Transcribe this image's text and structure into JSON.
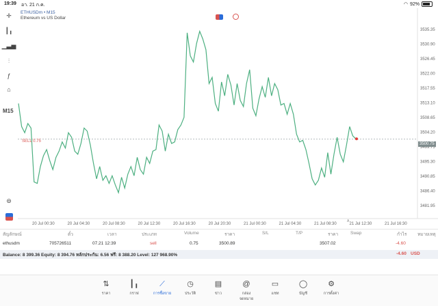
{
  "status_bar": {
    "time": "19:39",
    "date": "อา. 21 ก.ค.",
    "battery": "92%"
  },
  "chart": {
    "symbol_title": "ETHUSDm • M15",
    "subtitle": "Ethereum vs US Dollar",
    "timeframe": "M15",
    "sell_label": "SELL 0.75",
    "current_price": "3500.75",
    "line_color": "#4caf80",
    "sell_line_color": "#9aa3a8",
    "marker_color": "#e53935"
  },
  "chart_data": {
    "type": "line",
    "y_ticks": [
      "3535.35",
      "3530.90",
      "3526.45",
      "3522.00",
      "3517.55",
      "3513.10",
      "3508.65",
      "3504.20",
      "3499.75",
      "3495.30",
      "3490.85",
      "3486.40",
      "3481.95"
    ],
    "x_ticks": [
      "20 Jul 00:30",
      "20 Jul 04:30",
      "20 Jul 08:30",
      "20 Jul 12:30",
      "20 Jul 16:30",
      "20 Jul 20:30",
      "21 Jul 00:30",
      "21 Jul 04:30",
      "21 Jul 08:30",
      "21 Jul 12:30",
      "21 Jul 16:30"
    ],
    "ylim": [
      3479.5,
      3539.5
    ],
    "values": [
      3512.5,
      3505.0,
      3503.0,
      3506.0,
      3504.5,
      3487.0,
      3486.5,
      3492.0,
      3495.5,
      3497.5,
      3494.0,
      3491.0,
      3495.0,
      3497.0,
      3500.0,
      3498.0,
      3503.0,
      3501.5,
      3497.0,
      3496.0,
      3499.5,
      3504.5,
      3503.5,
      3499.0,
      3493.0,
      3488.0,
      3492.0,
      3487.5,
      3489.0,
      3486.5,
      3489.0,
      3486.0,
      3483.5,
      3488.5,
      3485.0,
      3489.5,
      3492.0,
      3489.0,
      3495.0,
      3491.0,
      3489.5,
      3495.0,
      3493.0,
      3497.0,
      3497.5,
      3505.5,
      3503.5,
      3497.0,
      3502.5,
      3499.5,
      3500.0,
      3504.0,
      3505.5,
      3508.0,
      3535.5,
      3528.0,
      3526.0,
      3532.0,
      3536.0,
      3533.5,
      3530.0,
      3519.0,
      3521.0,
      3512.5,
      3510.0,
      3519.5,
      3515.0,
      3522.0,
      3518.5,
      3512.0,
      3519.0,
      3513.5,
      3511.5,
      3519.0,
      3523.5,
      3511.0,
      3508.5,
      3514.0,
      3518.0,
      3514.5,
      3521.0,
      3515.0,
      3519.0,
      3517.0,
      3512.0,
      3512.5,
      3509.0,
      3512.5,
      3509.0,
      3502.5,
      3500.0,
      3500.5,
      3497.5,
      3493.0,
      3488.0,
      3486.0,
      3487.5,
      3491.5,
      3488.5,
      3496.5,
      3489.5,
      3496.0,
      3501.5,
      3496.0,
      3493.5,
      3499.0,
      3505.0,
      3502.0,
      3501.0
    ],
    "sell_price": 3500.89,
    "grid": false
  },
  "table": {
    "headers": [
      "สัญลักษณ์",
      "ตั๋ว",
      "เวลา",
      "ประเภท",
      "Volume",
      "ราคา",
      "S/L",
      "T/P",
      "ราคา",
      "Swap",
      "กำไร",
      "หมายเหตุ"
    ],
    "row": {
      "symbol": "ethusdm",
      "ticket": "705726511",
      "time": "07.21 12:39",
      "type": "sell",
      "volume": "0.75",
      "price": "3500.89",
      "current_price": "3507.02",
      "profit": "-4.60"
    }
  },
  "balance": {
    "text": "Balance: 8 399.36 Equity: 8 394.76 หลักประกัน: 6.56 ฟรี: 8 388.20 Level: 127 968.90%",
    "total": "-4.60",
    "currency": "USD"
  },
  "nav": [
    {
      "label": "ราคา",
      "icon": "arrows-updown-icon"
    },
    {
      "label": "กราฟ",
      "icon": "candles-icon"
    },
    {
      "label": "การซื้อขาย",
      "icon": "trade-chart-icon"
    },
    {
      "label": "ประวัติ",
      "icon": "history-icon"
    },
    {
      "label": "ข่าว",
      "icon": "news-icon"
    },
    {
      "label": "กล่องจดหมาย",
      "icon": "mailbox-icon"
    },
    {
      "label": "แชท",
      "icon": "chat-icon"
    },
    {
      "label": "บัญชี",
      "icon": "account-icon"
    },
    {
      "label": "การตั้งค่า",
      "icon": "settings-icon"
    }
  ]
}
